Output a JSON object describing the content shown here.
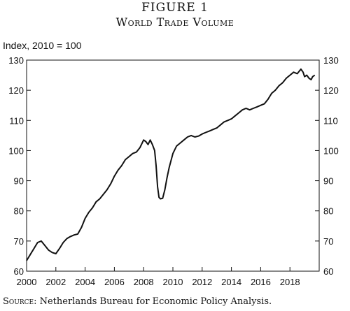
{
  "figure": {
    "label": "FIGURE 1",
    "title": "World Trade Volume",
    "y_unit": "Index, 2010 = 100",
    "source_prefix": "Source:",
    "source_text": " Netherlands Bureau for Economic Policy Analysis."
  },
  "chart_data": {
    "type": "line",
    "title": "World Trade Volume",
    "ylabel": "Index, 2010 = 100",
    "xlabel": "",
    "xlim": [
      2000,
      2020
    ],
    "ylim": [
      60,
      130
    ],
    "x_ticks": [
      2000,
      2002,
      2004,
      2006,
      2008,
      2010,
      2012,
      2014,
      2016,
      2018
    ],
    "y_ticks": [
      60,
      70,
      80,
      90,
      100,
      110,
      120,
      130
    ],
    "y_ticks_right": [
      60,
      70,
      80,
      90,
      100,
      110,
      120,
      130
    ],
    "grid": false,
    "series": [
      {
        "x": [
          2000.0,
          2000.25,
          2000.5,
          2000.75,
          2001.0,
          2001.25,
          2001.5,
          2001.75,
          2002.0,
          2002.25,
          2002.5,
          2002.75,
          2003.0,
          2003.25,
          2003.5,
          2003.75,
          2004.0,
          2004.25,
          2004.5,
          2004.75,
          2005.0,
          2005.25,
          2005.5,
          2005.75,
          2006.0,
          2006.25,
          2006.5,
          2006.75,
          2007.0,
          2007.25,
          2007.5,
          2007.75,
          2008.0,
          2008.15,
          2008.3,
          2008.45,
          2008.6,
          2008.75,
          2008.85,
          2008.95,
          2009.05,
          2009.15,
          2009.3,
          2009.45,
          2009.6,
          2009.75,
          2010.0,
          2010.25,
          2010.5,
          2010.75,
          2011.0,
          2011.25,
          2011.5,
          2011.75,
          2012.0,
          2012.25,
          2012.5,
          2012.75,
          2013.0,
          2013.25,
          2013.5,
          2013.75,
          2014.0,
          2014.25,
          2014.5,
          2014.75,
          2015.0,
          2015.25,
          2015.5,
          2015.75,
          2016.0,
          2016.25,
          2016.5,
          2016.75,
          2017.0,
          2017.25,
          2017.5,
          2017.75,
          2018.0,
          2018.25,
          2018.5,
          2018.75,
          2018.9,
          2019.0,
          2019.15,
          2019.3,
          2019.45,
          2019.55,
          2019.7
        ],
        "values": [
          63.5,
          65.5,
          67.5,
          69.5,
          70.0,
          68.5,
          67.0,
          66.2,
          65.8,
          67.5,
          69.5,
          70.8,
          71.5,
          72.0,
          72.3,
          74.5,
          77.5,
          79.5,
          81.0,
          83.0,
          84.0,
          85.5,
          87.0,
          89.0,
          91.5,
          93.5,
          95.0,
          97.0,
          98.0,
          99.0,
          99.5,
          101.0,
          103.5,
          103.0,
          102.0,
          103.5,
          102.0,
          100.0,
          95.0,
          88.0,
          84.5,
          84.0,
          84.2,
          87.0,
          91.0,
          94.5,
          99.0,
          101.5,
          102.5,
          103.5,
          104.5,
          105.0,
          104.5,
          104.8,
          105.5,
          106.0,
          106.5,
          107.0,
          107.5,
          108.5,
          109.5,
          110.0,
          110.5,
          111.5,
          112.5,
          113.5,
          114.0,
          113.5,
          114.0,
          114.5,
          115.0,
          115.5,
          117.0,
          119.0,
          120.0,
          121.5,
          122.5,
          124.0,
          125.0,
          126.0,
          125.5,
          127.0,
          126.0,
          124.5,
          125.0,
          124.0,
          123.5,
          124.5,
          125.0
        ]
      }
    ]
  }
}
